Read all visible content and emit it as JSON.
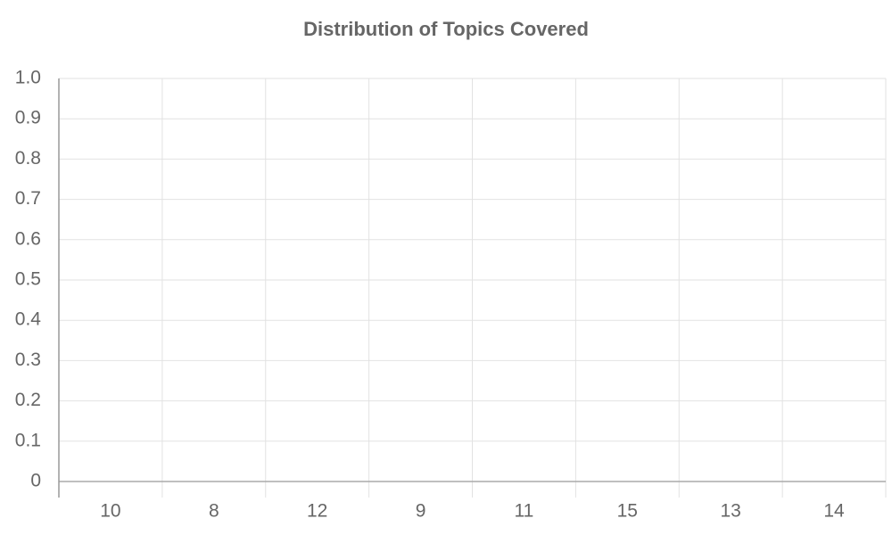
{
  "chart_data": {
    "type": "bar",
    "title": "Distribution of Topics Covered",
    "categories": [
      "10",
      "8",
      "12",
      "9",
      "11",
      "15",
      "13",
      "14"
    ],
    "ylim": [
      0,
      1
    ],
    "yticks": [
      0,
      0.1,
      0.2,
      0.3,
      0.4,
      0.5,
      0.6,
      0.7,
      0.8,
      0.9,
      {
        "value": 1,
        "label": "1.0"
      }
    ],
    "grid": true
  }
}
